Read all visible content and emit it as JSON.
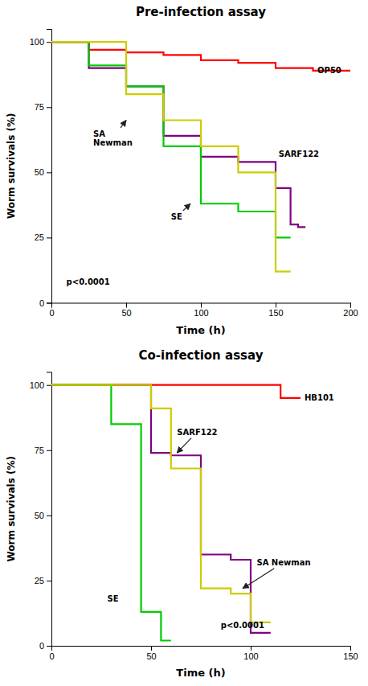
{
  "chart_data": [
    {
      "type": "line",
      "line_style": "step",
      "title": "Pre-infection assay",
      "x_label": "Time (h)",
      "y_label": "Worm survivals (%)",
      "xlim": [
        0,
        200
      ],
      "ylim": [
        0,
        105
      ],
      "xticks": [
        0,
        50,
        100,
        150,
        200
      ],
      "yticks": [
        0,
        25,
        50,
        75,
        100
      ],
      "series": [
        {
          "color": "#ff0000",
          "x": [
            0,
            25,
            25,
            50,
            50,
            75,
            75,
            100,
            100,
            125,
            125,
            150,
            150,
            175,
            175,
            200
          ],
          "values": [
            100,
            100,
            97,
            97,
            96,
            96,
            95,
            95,
            93,
            93,
            92,
            92,
            90,
            90,
            89,
            89
          ]
        },
        {
          "color": "#800080",
          "x": [
            0,
            25,
            25,
            50,
            50,
            75,
            75,
            100,
            100,
            125,
            125,
            150,
            150,
            160,
            160,
            165,
            165,
            170
          ],
          "values": [
            100,
            100,
            90,
            90,
            83,
            83,
            64,
            64,
            56,
            56,
            54,
            54,
            44,
            44,
            30,
            30,
            29,
            29
          ]
        },
        {
          "color": "#00cc00",
          "x": [
            0,
            25,
            25,
            50,
            50,
            75,
            75,
            100,
            100,
            125,
            125,
            150,
            150,
            160
          ],
          "values": [
            100,
            100,
            91,
            91,
            83,
            83,
            60,
            60,
            38,
            38,
            35,
            35,
            25,
            25
          ]
        },
        {
          "color": "#cccc00",
          "x": [
            0,
            25,
            25,
            50,
            50,
            75,
            75,
            100,
            100,
            125,
            125,
            150,
            150,
            160
          ],
          "values": [
            100,
            100,
            100,
            100,
            80,
            80,
            70,
            70,
            60,
            60,
            50,
            50,
            12,
            12
          ]
        }
      ],
      "annotations": [
        {
          "text": "SA\nNewman",
          "x": 28,
          "y": 63,
          "arrow_to": [
            50,
            70
          ]
        },
        {
          "text": "SE",
          "x": 80,
          "y": 33,
          "arrow_to": [
            93,
            38
          ]
        },
        {
          "text": "OP50",
          "x": 178,
          "y": 89
        },
        {
          "text": "SARF122",
          "x": 152,
          "y": 57
        },
        {
          "text": "p<0.0001",
          "x": 10,
          "y": 8
        }
      ]
    },
    {
      "type": "line",
      "line_style": "step",
      "title": "Co-infection assay",
      "x_label": "Time (h)",
      "y_label": "Worm survivals (%)",
      "xlim": [
        0,
        150
      ],
      "ylim": [
        0,
        105
      ],
      "xticks": [
        0,
        50,
        100,
        150
      ],
      "yticks": [
        0,
        25,
        50,
        75,
        100
      ],
      "series": [
        {
          "color": "#ff0000",
          "x": [
            0,
            50,
            50,
            75,
            75,
            100,
            100,
            115,
            115,
            125
          ],
          "values": [
            100,
            100,
            100,
            100,
            100,
            100,
            100,
            100,
            95,
            95
          ]
        },
        {
          "color": "#800080",
          "x": [
            0,
            50,
            50,
            60,
            60,
            75,
            75,
            90,
            90,
            100,
            100,
            110
          ],
          "values": [
            100,
            100,
            74,
            74,
            73,
            73,
            35,
            35,
            33,
            33,
            5,
            5
          ]
        },
        {
          "color": "#00cc00",
          "x": [
            0,
            30,
            30,
            45,
            45,
            55,
            55,
            60
          ],
          "values": [
            100,
            100,
            85,
            85,
            13,
            13,
            2,
            2
          ]
        },
        {
          "color": "#cccc00",
          "x": [
            0,
            50,
            50,
            60,
            60,
            75,
            75,
            90,
            90,
            100,
            100,
            110
          ],
          "values": [
            100,
            100,
            91,
            91,
            68,
            68,
            22,
            22,
            20,
            20,
            9,
            9
          ]
        }
      ],
      "annotations": [
        {
          "text": "SARF122",
          "x": 63,
          "y": 82,
          "arrow_to": [
            63,
            74
          ]
        },
        {
          "text": "SA Newman",
          "x": 103,
          "y": 32,
          "arrow_to": [
            96,
            22
          ]
        },
        {
          "text": "HB101",
          "x": 127,
          "y": 95
        },
        {
          "text": "SE",
          "x": 28,
          "y": 18
        },
        {
          "text": "p<0.0001",
          "x": 85,
          "y": 8
        }
      ]
    }
  ]
}
